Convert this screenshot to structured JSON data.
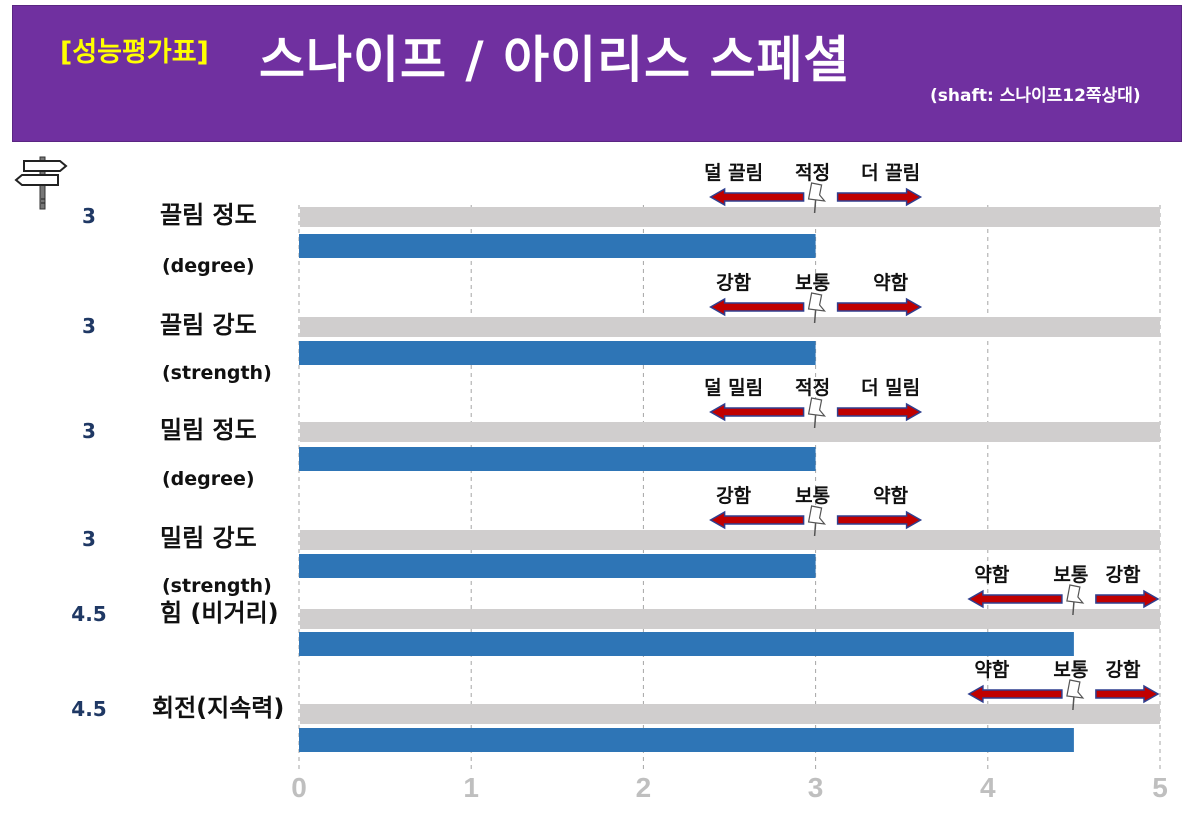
{
  "header": {
    "tag": "[성능평가표]",
    "title": "스나이프 / 아이리스 스페셜",
    "subtitle": "(shaft: 스나이프12쪽상대)"
  },
  "colors": {
    "header_bg": "#7030a0",
    "tag": "#ffff00",
    "bar": "#2e75b6",
    "track": "#d0cece",
    "arrow": "#c00000",
    "value_text": "#1f3864"
  },
  "chart_data": {
    "type": "bar",
    "orientation": "horizontal",
    "xlim": [
      0,
      5
    ],
    "x_ticks": [
      "0",
      "1",
      "2",
      "3",
      "4",
      "5"
    ],
    "grid": true,
    "rows": [
      {
        "value": 3,
        "value_label": "3",
        "label": "끌림 정도",
        "sublabel": "(degree)",
        "scale": [
          "덜 끌림",
          "적정",
          "더 끌림"
        ]
      },
      {
        "value": 3,
        "value_label": "3",
        "label": "끌림 강도",
        "sublabel": "(strength)",
        "scale": [
          "강함",
          "보통",
          "약함"
        ]
      },
      {
        "value": 3,
        "value_label": "3",
        "label": "밀림 정도",
        "sublabel": "(degree)",
        "scale": [
          "덜 밀림",
          "적정",
          "더 밀림"
        ]
      },
      {
        "value": 3,
        "value_label": "3",
        "label": "밀림 강도",
        "sublabel": "(strength)",
        "scale": [
          "강함",
          "보통",
          "약함"
        ]
      },
      {
        "value": 4.5,
        "value_label": "4.5",
        "label": "힘 (비거리)",
        "sublabel": "",
        "scale": [
          "약함",
          "보통",
          "강함"
        ]
      },
      {
        "value": 4.5,
        "value_label": "4.5",
        "label": "회전(지속력)",
        "sublabel": "",
        "scale": [
          "약함",
          "보통",
          "강함"
        ]
      }
    ]
  }
}
